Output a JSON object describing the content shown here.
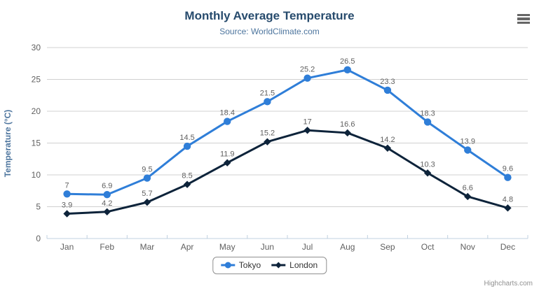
{
  "chart_data": {
    "type": "line",
    "title": "Monthly Average Temperature",
    "subtitle": "Source: WorldClimate.com",
    "categories": [
      "Jan",
      "Feb",
      "Mar",
      "Apr",
      "May",
      "Jun",
      "Jul",
      "Aug",
      "Sep",
      "Oct",
      "Nov",
      "Dec"
    ],
    "series": [
      {
        "name": "Tokyo",
        "color": "#2f7ed8",
        "marker": "circle",
        "values": [
          7,
          6.9,
          9.5,
          14.5,
          18.4,
          21.5,
          25.2,
          26.5,
          23.3,
          18.3,
          13.9,
          9.6
        ]
      },
      {
        "name": "London",
        "color": "#0d233a",
        "marker": "diamond",
        "values": [
          3.9,
          4.2,
          5.7,
          8.5,
          11.9,
          15.2,
          17,
          16.6,
          14.2,
          10.3,
          6.6,
          4.8
        ]
      }
    ],
    "xlabel": "",
    "ylabel": "Temperature (°C)",
    "ylim": [
      0,
      30
    ],
    "ytick_interval": 5,
    "grid": true,
    "data_labels": true,
    "legend_position": "bottom-center"
  },
  "colors": {
    "title": "#274b6d",
    "subtitle": "#4d759e",
    "axis_title": "#4d759e",
    "tick_label": "#606060",
    "data_label": "#606060",
    "gridline": "#d0d0d0",
    "axis_line": "#c0d0e0",
    "legend_border": "#909090",
    "legend_text": "#333333",
    "credits": "#909090",
    "menu_icon": "#666666"
  },
  "credits": {
    "label": "Highcharts.com"
  }
}
